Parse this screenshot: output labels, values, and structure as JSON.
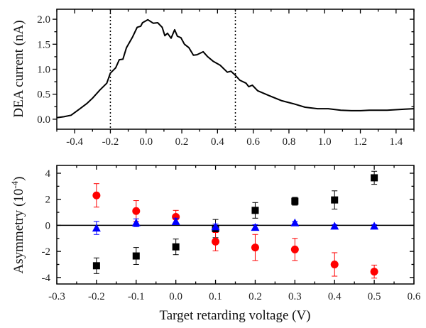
{
  "chart_data": [
    {
      "type": "line",
      "xlabel": "",
      "ylabel": "DEA current (nA)",
      "xlim": [
        -0.5,
        1.5
      ],
      "ylim": [
        -0.2,
        2.2
      ],
      "xticks": [
        "-0.4",
        "-0.2",
        "0.0",
        "0.2",
        "0.4",
        "0.6",
        "0.8",
        "1.0",
        "1.2",
        "1.4"
      ],
      "xtick_values": [
        -0.4,
        -0.2,
        0.0,
        0.2,
        0.4,
        0.6,
        0.8,
        1.0,
        1.2,
        1.4
      ],
      "yticks": [
        "0.0",
        "0.5",
        "1.0",
        "1.5",
        "2.0"
      ],
      "ytick_values": [
        0.0,
        0.5,
        1.0,
        1.5,
        2.0
      ],
      "vlines": [
        -0.2,
        0.5
      ],
      "grid": false,
      "series": [
        {
          "name": "DEA current",
          "color": "#000000",
          "x": [
            -0.5,
            -0.46,
            -0.42,
            -0.37,
            -0.33,
            -0.3,
            -0.26,
            -0.22,
            -0.2,
            -0.17,
            -0.15,
            -0.13,
            -0.11,
            -0.075,
            -0.05,
            -0.03,
            -0.02,
            0.01,
            0.04,
            0.065,
            0.09,
            0.105,
            0.12,
            0.14,
            0.16,
            0.175,
            0.195,
            0.215,
            0.24,
            0.265,
            0.285,
            0.32,
            0.345,
            0.375,
            0.415,
            0.455,
            0.475,
            0.5,
            0.525,
            0.56,
            0.575,
            0.595,
            0.625,
            0.69,
            0.76,
            0.825,
            0.89,
            0.96,
            1.02,
            1.09,
            1.15,
            1.2,
            1.25,
            1.3,
            1.35,
            1.4,
            1.45,
            1.5
          ],
          "y": [
            0.03,
            0.05,
            0.08,
            0.21,
            0.32,
            0.42,
            0.58,
            0.72,
            0.92,
            1.03,
            1.19,
            1.2,
            1.43,
            1.65,
            1.84,
            1.86,
            1.93,
            1.99,
            1.92,
            1.93,
            1.84,
            1.67,
            1.72,
            1.62,
            1.79,
            1.66,
            1.63,
            1.5,
            1.43,
            1.28,
            1.29,
            1.35,
            1.25,
            1.16,
            1.08,
            0.94,
            0.96,
            0.88,
            0.78,
            0.72,
            0.65,
            0.68,
            0.57,
            0.47,
            0.37,
            0.31,
            0.24,
            0.21,
            0.21,
            0.18,
            0.17,
            0.17,
            0.18,
            0.18,
            0.18,
            0.19,
            0.2,
            0.21
          ]
        }
      ]
    },
    {
      "type": "scatter",
      "xlabel": "Target retarding voltage (V)",
      "ylabel_main": "Asymmetry (10",
      "ylabel_sup": "-4",
      "ylabel_end": ")",
      "xlim": [
        -0.3,
        0.6
      ],
      "ylim": [
        -4.5,
        4.6
      ],
      "xticks": [
        "-0.3",
        "-0.2",
        "-0.1",
        "0.0",
        "0.1",
        "0.2",
        "0.3",
        "0.4",
        "0.5",
        "0.6"
      ],
      "xtick_values": [
        -0.3,
        -0.2,
        -0.1,
        0.0,
        0.1,
        0.2,
        0.3,
        0.4,
        0.5,
        0.6
      ],
      "yticks": [
        "-4",
        "-2",
        "0",
        "2",
        "4"
      ],
      "ytick_values": [
        -4,
        -2,
        0,
        2,
        4
      ],
      "hline": 0,
      "grid": false,
      "categories": [
        -0.2,
        -0.1,
        0.0,
        0.1,
        0.2,
        0.3,
        0.4,
        0.5
      ],
      "series": [
        {
          "name": "squares",
          "marker": "square",
          "color": "#000000",
          "values": [
            -3.1,
            -2.35,
            -1.65,
            -0.25,
            1.15,
            1.85,
            1.95,
            3.65
          ],
          "errors": [
            0.6,
            0.65,
            0.6,
            0.7,
            0.6,
            0.3,
            0.7,
            0.5
          ]
        },
        {
          "name": "circles",
          "marker": "circle",
          "color": "#ff0000",
          "values": [
            2.3,
            1.1,
            0.65,
            -1.25,
            -1.7,
            -1.85,
            -3.0,
            -3.55
          ],
          "errors": [
            0.9,
            0.8,
            0.5,
            0.7,
            1.0,
            0.85,
            0.9,
            0.5
          ]
        },
        {
          "name": "triangles",
          "marker": "triangle",
          "color": "#0000ff",
          "values": [
            -0.2,
            0.2,
            0.3,
            -0.1,
            -0.15,
            0.2,
            -0.05,
            -0.05
          ],
          "errors": [
            0.5,
            0.3,
            0.25,
            0.2,
            0.2,
            0.1,
            0.1,
            0.1
          ]
        }
      ]
    }
  ]
}
